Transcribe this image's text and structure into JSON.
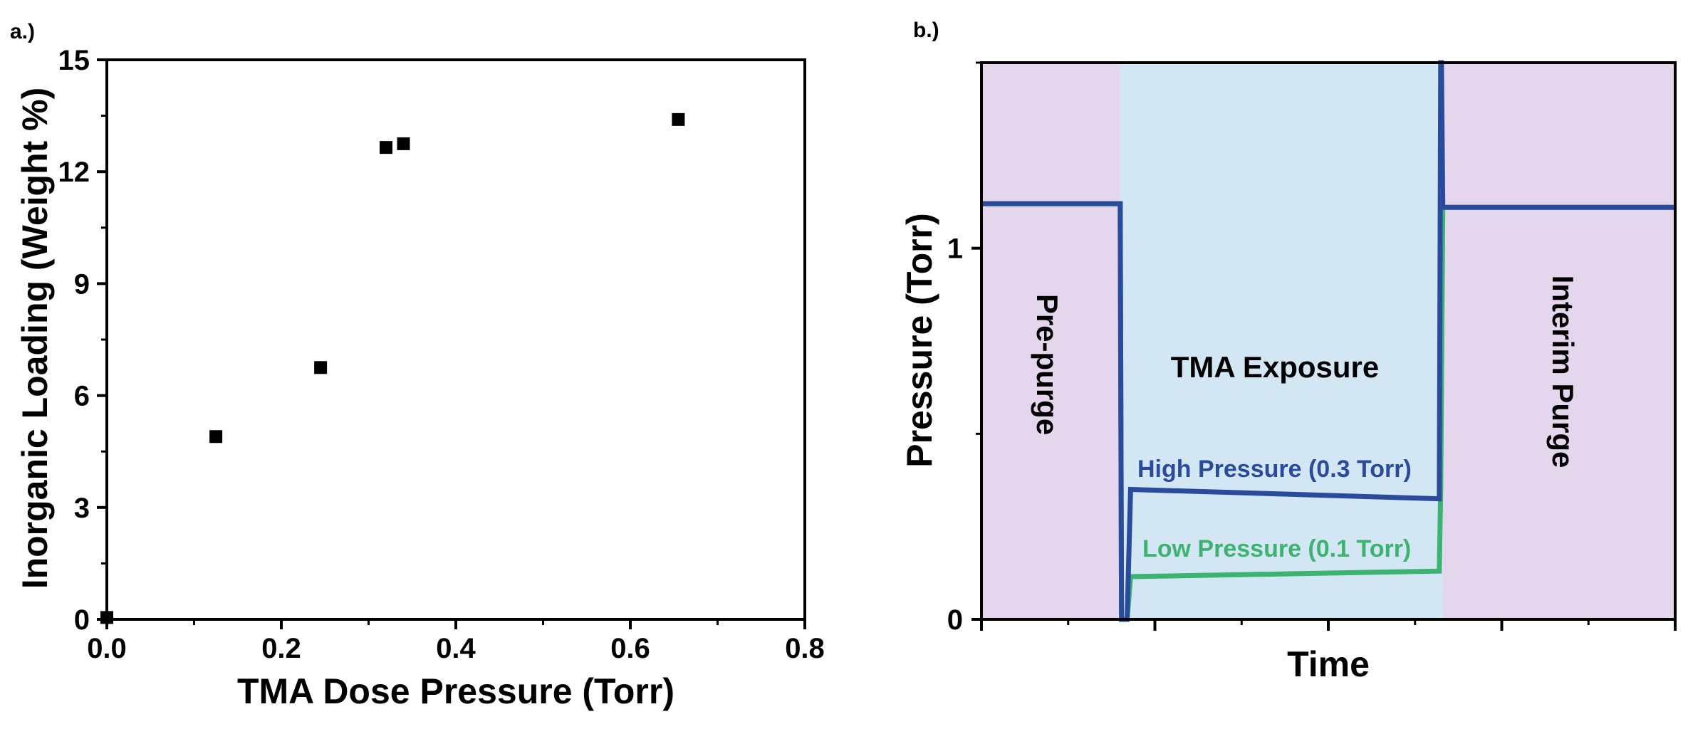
{
  "chart_data": [
    {
      "panel": "a.)",
      "type": "scatter",
      "title": "",
      "xlabel": "TMA Dose Pressure (Torr)",
      "ylabel": "Inorganic Loading (Weight %)",
      "xlim": [
        0,
        0.8
      ],
      "ylim": [
        0,
        15
      ],
      "xticks": [
        "0.0",
        "0.2",
        "0.4",
        "0.6",
        "0.8"
      ],
      "yticks": [
        "0",
        "3",
        "6",
        "9",
        "12",
        "15"
      ],
      "grid": false,
      "points": [
        {
          "x": 0.0,
          "y": 0.05
        },
        {
          "x": 0.125,
          "y": 4.9
        },
        {
          "x": 0.245,
          "y": 6.75
        },
        {
          "x": 0.32,
          "y": 12.65
        },
        {
          "x": 0.34,
          "y": 12.75
        },
        {
          "x": 0.655,
          "y": 13.4
        }
      ],
      "marker_color": "#000000"
    },
    {
      "panel": "b.)",
      "type": "line",
      "title": "",
      "xlabel": "Time",
      "ylabel": "Pressure (Torr)",
      "xlim": [
        0,
        10
      ],
      "ylim": [
        0,
        1.5
      ],
      "yticks": [
        "0",
        "1"
      ],
      "grid": false,
      "regions": [
        {
          "label": "Pre-purge",
          "x_start": 0,
          "x_end": 2.0,
          "color": "#e4d6ec",
          "orientation": "vertical-down"
        },
        {
          "label": "TMA Exposure",
          "x_start": 2.0,
          "x_end": 6.65,
          "color": "#d3e6f4",
          "orientation": "horizontal"
        },
        {
          "label": "Interim Purge",
          "x_start": 6.65,
          "x_end": 10,
          "color": "#e4d6ec",
          "orientation": "vertical-down"
        }
      ],
      "series": [
        {
          "name": "Low Pressure (0.1 Torr)",
          "color": "#3cb371",
          "x": [
            0,
            2.0,
            2.02,
            2.1,
            2.15,
            6.6,
            6.62,
            6.65,
            10
          ],
          "y": [
            1.12,
            1.12,
            0.0,
            0.0,
            0.115,
            0.13,
            0.35,
            1.11,
            1.11
          ]
        },
        {
          "name": "High Pressure (0.3 Torr)",
          "color": "#2a4b9b",
          "x": [
            0,
            2.0,
            2.02,
            2.1,
            2.15,
            6.6,
            6.62,
            6.63,
            6.65,
            10
          ],
          "y": [
            1.12,
            1.12,
            0.0,
            0.0,
            0.35,
            0.325,
            1.5,
            1.5,
            1.11,
            1.11
          ]
        }
      ]
    }
  ]
}
